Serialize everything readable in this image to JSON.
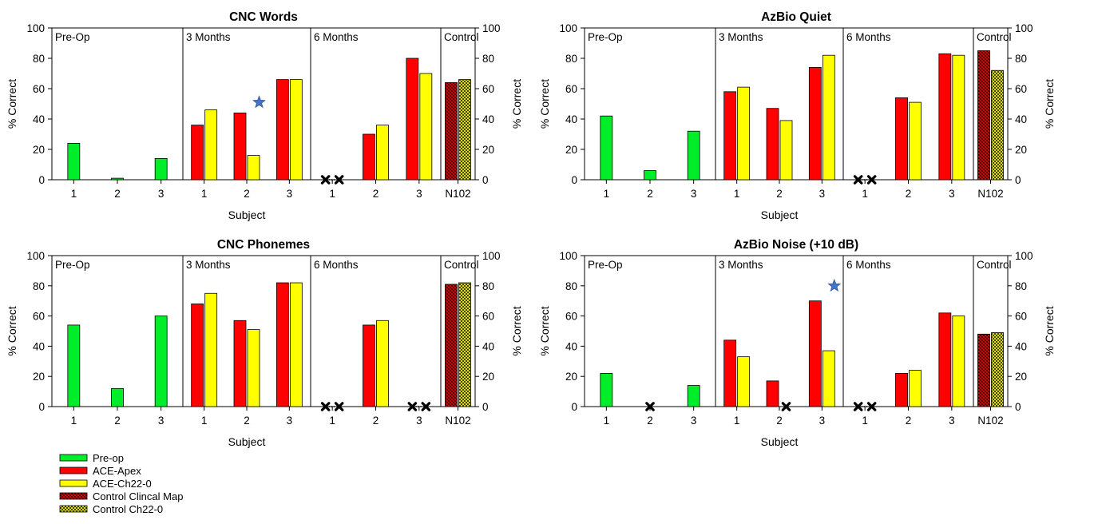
{
  "figure": {
    "legend": [
      {
        "label": "Pre-op",
        "color": "#00ee2a",
        "pattern": "solid"
      },
      {
        "label": "ACE-Apex",
        "color": "#ff0000",
        "pattern": "solid"
      },
      {
        "label": "ACE-Ch22-0",
        "color": "#ffff00",
        "pattern": "solid"
      },
      {
        "label": "Control Clincal Map",
        "color": "#ff0000",
        "pattern": "crosshatch"
      },
      {
        "label": "Control Ch22-0",
        "color": "#ffff00",
        "pattern": "crosshatch"
      }
    ],
    "colors": {
      "preop": "#00ee2a",
      "apex": "#ff0000",
      "ch22": "#ffff00",
      "star": "#4472c4",
      "missing": "#000000"
    },
    "missing_marker": "x-icon",
    "star_marker": "star-icon"
  },
  "chart_data": [
    {
      "type": "bar",
      "title": "CNC Words",
      "xlabel": "Subject",
      "ylabel": "% Correct",
      "ylim": [
        0,
        100
      ],
      "yticks": [
        "0",
        "20",
        "40",
        "60",
        "80",
        "100"
      ],
      "grid": false,
      "segments": [
        {
          "label": "Pre-Op",
          "groups": [
            {
              "category": "1",
              "bars": [
                {
                  "series": "Pre-op",
                  "value": 24
                }
              ]
            },
            {
              "category": "2",
              "bars": [
                {
                  "series": "Pre-op",
                  "value": 1
                }
              ]
            },
            {
              "category": "3",
              "bars": [
                {
                  "series": "Pre-op",
                  "value": 14
                }
              ]
            }
          ]
        },
        {
          "label": "3 Months",
          "groups": [
            {
              "category": "1",
              "bars": [
                {
                  "series": "ACE-Apex",
                  "value": 36
                },
                {
                  "series": "ACE-Ch22-0",
                  "value": 46
                }
              ]
            },
            {
              "category": "2",
              "bars": [
                {
                  "series": "ACE-Apex",
                  "value": 44
                },
                {
                  "series": "ACE-Ch22-0",
                  "value": 16
                }
              ],
              "star": 51
            },
            {
              "category": "3",
              "bars": [
                {
                  "series": "ACE-Apex",
                  "value": 66
                },
                {
                  "series": "ACE-Ch22-0",
                  "value": 66
                }
              ]
            }
          ]
        },
        {
          "label": "6 Months",
          "groups": [
            {
              "category": "1",
              "bars": [
                {
                  "series": "ACE-Apex",
                  "value": null
                },
                {
                  "series": "ACE-Ch22-0",
                  "value": null
                }
              ]
            },
            {
              "category": "2",
              "bars": [
                {
                  "series": "ACE-Apex",
                  "value": 30
                },
                {
                  "series": "ACE-Ch22-0",
                  "value": 36
                }
              ]
            },
            {
              "category": "3",
              "bars": [
                {
                  "series": "ACE-Apex",
                  "value": 80
                },
                {
                  "series": "ACE-Ch22-0",
                  "value": 70
                }
              ]
            }
          ]
        },
        {
          "label": "Control",
          "groups": [
            {
              "category": "N102",
              "bars": [
                {
                  "series": "Control Clincal Map",
                  "value": 64
                },
                {
                  "series": "Control Ch22-0",
                  "value": 66
                }
              ]
            }
          ]
        }
      ]
    },
    {
      "type": "bar",
      "title": "AzBio Quiet",
      "xlabel": "Subject",
      "ylabel": "% Correct",
      "ylim": [
        0,
        100
      ],
      "yticks": [
        "0",
        "20",
        "40",
        "60",
        "80",
        "100"
      ],
      "grid": false,
      "segments": [
        {
          "label": "Pre-Op",
          "groups": [
            {
              "category": "1",
              "bars": [
                {
                  "series": "Pre-op",
                  "value": 42
                }
              ]
            },
            {
              "category": "2",
              "bars": [
                {
                  "series": "Pre-op",
                  "value": 6
                }
              ]
            },
            {
              "category": "3",
              "bars": [
                {
                  "series": "Pre-op",
                  "value": 32
                }
              ]
            }
          ]
        },
        {
          "label": "3 Months",
          "groups": [
            {
              "category": "1",
              "bars": [
                {
                  "series": "ACE-Apex",
                  "value": 58
                },
                {
                  "series": "ACE-Ch22-0",
                  "value": 61
                }
              ]
            },
            {
              "category": "2",
              "bars": [
                {
                  "series": "ACE-Apex",
                  "value": 47
                },
                {
                  "series": "ACE-Ch22-0",
                  "value": 39
                }
              ]
            },
            {
              "category": "3",
              "bars": [
                {
                  "series": "ACE-Apex",
                  "value": 74
                },
                {
                  "series": "ACE-Ch22-0",
                  "value": 82
                }
              ]
            }
          ]
        },
        {
          "label": "6 Months",
          "groups": [
            {
              "category": "1",
              "bars": [
                {
                  "series": "ACE-Apex",
                  "value": null
                },
                {
                  "series": "ACE-Ch22-0",
                  "value": null
                }
              ]
            },
            {
              "category": "2",
              "bars": [
                {
                  "series": "ACE-Apex",
                  "value": 54
                },
                {
                  "series": "ACE-Ch22-0",
                  "value": 51
                }
              ]
            },
            {
              "category": "3",
              "bars": [
                {
                  "series": "ACE-Apex",
                  "value": 83
                },
                {
                  "series": "ACE-Ch22-0",
                  "value": 82
                }
              ]
            }
          ]
        },
        {
          "label": "Control",
          "groups": [
            {
              "category": "N102",
              "bars": [
                {
                  "series": "Control Clincal Map",
                  "value": 85
                },
                {
                  "series": "Control Ch22-0",
                  "value": 72
                }
              ]
            }
          ]
        }
      ]
    },
    {
      "type": "bar",
      "title": "CNC Phonemes",
      "xlabel": "Subject",
      "ylabel": "% Correct",
      "ylim": [
        0,
        100
      ],
      "yticks": [
        "0",
        "20",
        "40",
        "60",
        "80",
        "100"
      ],
      "grid": false,
      "segments": [
        {
          "label": "Pre-Op",
          "groups": [
            {
              "category": "1",
              "bars": [
                {
                  "series": "Pre-op",
                  "value": 54
                }
              ]
            },
            {
              "category": "2",
              "bars": [
                {
                  "series": "Pre-op",
                  "value": 12
                }
              ]
            },
            {
              "category": "3",
              "bars": [
                {
                  "series": "Pre-op",
                  "value": 60
                }
              ]
            }
          ]
        },
        {
          "label": "3 Months",
          "groups": [
            {
              "category": "1",
              "bars": [
                {
                  "series": "ACE-Apex",
                  "value": 68
                },
                {
                  "series": "ACE-Ch22-0",
                  "value": 75
                }
              ]
            },
            {
              "category": "2",
              "bars": [
                {
                  "series": "ACE-Apex",
                  "value": 57
                },
                {
                  "series": "ACE-Ch22-0",
                  "value": 51
                }
              ]
            },
            {
              "category": "3",
              "bars": [
                {
                  "series": "ACE-Apex",
                  "value": 82
                },
                {
                  "series": "ACE-Ch22-0",
                  "value": 82
                }
              ]
            }
          ]
        },
        {
          "label": "6 Months",
          "groups": [
            {
              "category": "1",
              "bars": [
                {
                  "series": "ACE-Apex",
                  "value": null
                },
                {
                  "series": "ACE-Ch22-0",
                  "value": null
                }
              ]
            },
            {
              "category": "2",
              "bars": [
                {
                  "series": "ACE-Apex",
                  "value": 54
                },
                {
                  "series": "ACE-Ch22-0",
                  "value": 57
                }
              ]
            },
            {
              "category": "3",
              "bars": [
                {
                  "series": "ACE-Apex",
                  "value": null
                },
                {
                  "series": "ACE-Ch22-0",
                  "value": null
                }
              ]
            }
          ]
        },
        {
          "label": "Control",
          "groups": [
            {
              "category": "N102",
              "bars": [
                {
                  "series": "Control Clincal Map",
                  "value": 81
                },
                {
                  "series": "Control Ch22-0",
                  "value": 82
                }
              ]
            }
          ]
        }
      ]
    },
    {
      "type": "bar",
      "title": "AzBio Noise (+10 dB)",
      "xlabel": "Subject",
      "ylabel": "% Correct",
      "ylim": [
        0,
        100
      ],
      "yticks": [
        "0",
        "20",
        "40",
        "60",
        "80",
        "100"
      ],
      "grid": false,
      "segments": [
        {
          "label": "Pre-Op",
          "groups": [
            {
              "category": "1",
              "bars": [
                {
                  "series": "Pre-op",
                  "value": 22
                }
              ]
            },
            {
              "category": "2",
              "bars": [
                {
                  "series": "Pre-op",
                  "value": null
                }
              ]
            },
            {
              "category": "3",
              "bars": [
                {
                  "series": "Pre-op",
                  "value": 14
                }
              ]
            }
          ]
        },
        {
          "label": "3 Months",
          "groups": [
            {
              "category": "1",
              "bars": [
                {
                  "series": "ACE-Apex",
                  "value": 44
                },
                {
                  "series": "ACE-Ch22-0",
                  "value": 33
                }
              ]
            },
            {
              "category": "2",
              "bars": [
                {
                  "series": "ACE-Apex",
                  "value": 17
                },
                {
                  "series": "ACE-Ch22-0",
                  "value": null
                }
              ]
            },
            {
              "category": "3",
              "bars": [
                {
                  "series": "ACE-Apex",
                  "value": 70
                },
                {
                  "series": "ACE-Ch22-0",
                  "value": 37
                }
              ],
              "star": 80
            }
          ]
        },
        {
          "label": "6 Months",
          "groups": [
            {
              "category": "1",
              "bars": [
                {
                  "series": "ACE-Apex",
                  "value": null
                },
                {
                  "series": "ACE-Ch22-0",
                  "value": null
                }
              ]
            },
            {
              "category": "2",
              "bars": [
                {
                  "series": "ACE-Apex",
                  "value": 22
                },
                {
                  "series": "ACE-Ch22-0",
                  "value": 24
                }
              ]
            },
            {
              "category": "3",
              "bars": [
                {
                  "series": "ACE-Apex",
                  "value": 62
                },
                {
                  "series": "ACE-Ch22-0",
                  "value": 60
                }
              ]
            }
          ]
        },
        {
          "label": "Control",
          "groups": [
            {
              "category": "N102",
              "bars": [
                {
                  "series": "Control Clincal Map",
                  "value": 48
                },
                {
                  "series": "Control Ch22-0",
                  "value": 49
                }
              ]
            }
          ]
        }
      ]
    }
  ]
}
